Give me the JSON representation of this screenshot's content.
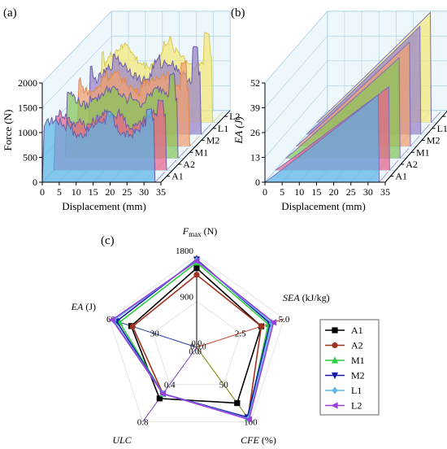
{
  "panels": {
    "a": {
      "panel_label": "(a)",
      "chart_data": {
        "type": "area",
        "xlabel": "Displacement (mm)",
        "ylabel": "Force (N)",
        "x_ticks": [
          "0",
          "5",
          "10",
          "15",
          "20",
          "25",
          "30",
          "35"
        ],
        "y_ticks": [
          "0",
          "500",
          "1000",
          "1500",
          "2000"
        ],
        "xlim": [
          0,
          35
        ],
        "ylim": [
          0,
          2000
        ],
        "series": [
          {
            "name": "A1",
            "color": "#5ab4e8",
            "plateau": 1250,
            "peak": 1450
          },
          {
            "name": "A2",
            "color": "#e8648c",
            "plateau": 1150,
            "peak": 1400
          },
          {
            "name": "M1",
            "color": "#86c55a",
            "plateau": 1400,
            "peak": 1700
          },
          {
            "name": "M2",
            "color": "#f0a070",
            "plateau": 1450,
            "peak": 1700
          },
          {
            "name": "L1",
            "color": "#9a82c8",
            "plateau": 1450,
            "peak": 1750
          },
          {
            "name": "L2",
            "color": "#f4e878",
            "plateau": 1500,
            "peak": 1800
          }
        ]
      }
    },
    "b": {
      "panel_label": "(b)",
      "chart_data": {
        "type": "area",
        "xlabel": "Displacement (mm)",
        "ylabel": "EA (J)",
        "x_ticks": [
          "0",
          "5",
          "10",
          "15",
          "20",
          "25",
          "30",
          "35"
        ],
        "y_ticks": [
          "0",
          "13",
          "26",
          "39",
          "52"
        ],
        "xlim": [
          0,
          35
        ],
        "ylim": [
          0,
          52
        ],
        "series": [
          {
            "name": "A1",
            "color": "#5ab4e8",
            "final": 46
          },
          {
            "name": "A2",
            "color": "#e8648c",
            "final": 44
          },
          {
            "name": "M1",
            "color": "#86c55a",
            "final": 53
          },
          {
            "name": "M2",
            "color": "#f0a070",
            "final": 55
          },
          {
            "name": "L1",
            "color": "#9a82c8",
            "final": 57
          },
          {
            "name": "L2",
            "color": "#f4e878",
            "final": 58
          }
        ]
      }
    },
    "c": {
      "panel_label": "(c)",
      "chart_data": {
        "type": "radar",
        "axes": [
          {
            "key": "fmax",
            "label": "F",
            "label_sub": "max",
            "label_unit": " (N)",
            "max": 1800,
            "ticks": [
              "900",
              "1800"
            ],
            "tick_color": "#000000",
            "zero": "0.0"
          },
          {
            "key": "sea",
            "label": "SEA",
            "label_unit": " (kJ/kg)",
            "max": 5.0,
            "ticks": [
              "2.5",
              "5.0"
            ],
            "tick_color": "#c0392b",
            "zero": "0.0"
          },
          {
            "key": "cfe",
            "label": "CFE",
            "label_unit": " (%)",
            "max": 100,
            "ticks": [
              "50",
              "100"
            ],
            "tick_color": "#808000",
            "zero": "0"
          },
          {
            "key": "ulc",
            "label": "ULC",
            "label_unit": "",
            "max": 0.8,
            "ticks": [
              "0.4",
              "0.8"
            ],
            "tick_color": "#7b3fbf",
            "zero": "0.0"
          },
          {
            "key": "ea",
            "label": "EA",
            "label_unit": " (J)",
            "max": 60,
            "ticks": [
              "30",
              "60"
            ],
            "tick_color": "#1f3f9f",
            "zero": "0"
          }
        ],
        "series": [
          {
            "name": "A1",
            "color": "#000000",
            "marker": "square",
            "values": [
              1550,
              3.7,
              75,
              0.55,
              45
            ]
          },
          {
            "name": "A2",
            "color": "#a0321e",
            "marker": "circle",
            "values": [
              1420,
              3.7,
              95,
              0.5,
              44
            ]
          },
          {
            "name": "M1",
            "color": "#2ecc40",
            "marker": "triangle-up",
            "values": [
              1660,
              4.1,
              95,
              0.5,
              53
            ]
          },
          {
            "name": "M2",
            "color": "#1a1aa8",
            "marker": "triangle-down",
            "values": [
              1720,
              4.2,
              94,
              0.5,
              55
            ]
          },
          {
            "name": "L1",
            "color": "#5fb8e8",
            "marker": "diamond",
            "values": [
              1700,
              4.3,
              96,
              0.5,
              57
            ]
          },
          {
            "name": "L2",
            "color": "#9b3fdc",
            "marker": "triangle-left",
            "values": [
              1690,
              4.4,
              97,
              0.5,
              58
            ]
          }
        ]
      }
    }
  }
}
